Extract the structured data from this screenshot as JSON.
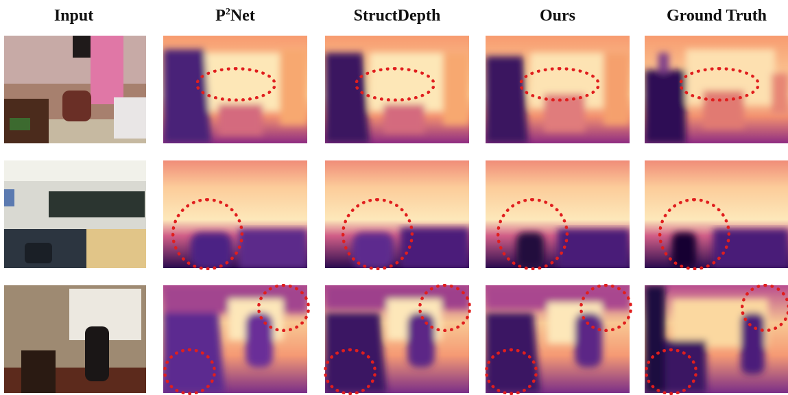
{
  "figure": {
    "columns": [
      {
        "id": "input",
        "label": "Input"
      },
      {
        "id": "p2net",
        "label": "P",
        "sup": "2",
        "suffix": "Net"
      },
      {
        "id": "structdepth",
        "label": "StructDepth"
      },
      {
        "id": "ours",
        "label": "Ours"
      },
      {
        "id": "gt",
        "label": "Ground Truth"
      }
    ],
    "rows": [
      {
        "id": "bedroom",
        "scene": "bedroom with armchair and pink curtain"
      },
      {
        "id": "classroom",
        "scene": "meeting room with chalkboard and conference table"
      },
      {
        "id": "office",
        "scene": "office with desk and desk chair by window"
      }
    ],
    "colors": {
      "highlight": "#e01e1e",
      "depth_near": "#2a0b4f",
      "depth_mid": "#c6487f",
      "depth_far": "#fcefb9"
    }
  }
}
